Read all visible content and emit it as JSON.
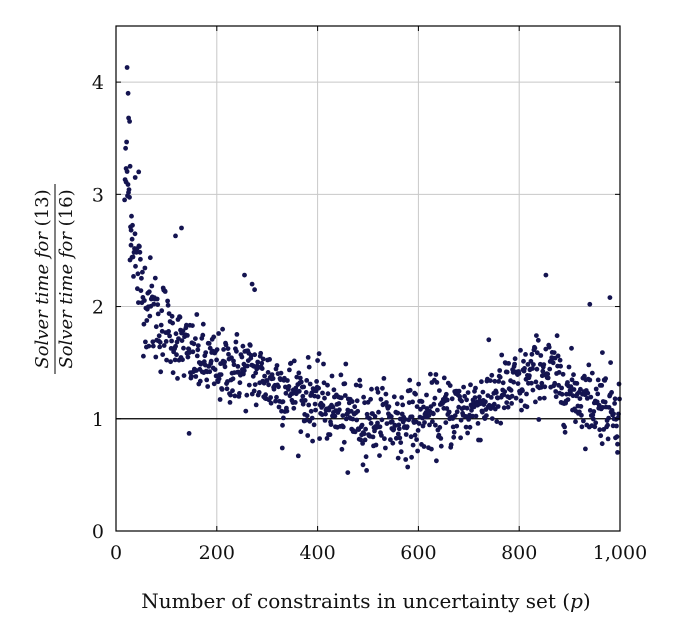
{
  "chart_data": {
    "type": "scatter",
    "xlabel": "Number of constraints in uncertainty set (p)",
    "ylabel_numerator": "Solver time for (13)",
    "ylabel_denominator": "Solver time for (16)",
    "xlim": [
      0,
      1000
    ],
    "ylim": [
      0,
      4.5
    ],
    "xticks": [
      0,
      200,
      400,
      600,
      800,
      1000
    ],
    "xtick_labels": [
      "0",
      "200",
      "400",
      "600",
      "800",
      "1,000"
    ],
    "yticks": [
      0,
      1,
      2,
      3,
      4
    ],
    "ytick_labels": [
      "0",
      "1",
      "2",
      "3",
      "4"
    ],
    "grid": true,
    "reference_line_y": 1,
    "marker_color": "#141450",
    "trend_points": [
      [
        20,
        3.2
      ],
      [
        40,
        2.35
      ],
      [
        60,
        2.05
      ],
      [
        80,
        1.9
      ],
      [
        100,
        1.8
      ],
      [
        120,
        1.7
      ],
      [
        150,
        1.55
      ],
      [
        200,
        1.45
      ],
      [
        250,
        1.45
      ],
      [
        300,
        1.35
      ],
      [
        350,
        1.25
      ],
      [
        400,
        1.15
      ],
      [
        450,
        1.05
      ],
      [
        500,
        1.0
      ],
      [
        550,
        0.98
      ],
      [
        600,
        1.0
      ],
      [
        650,
        1.05
      ],
      [
        700,
        1.1
      ],
      [
        750,
        1.2
      ],
      [
        800,
        1.3
      ],
      [
        850,
        1.45
      ],
      [
        900,
        1.25
      ],
      [
        950,
        1.15
      ],
      [
        1000,
        1.1
      ]
    ],
    "outliers": [
      [
        22,
        4.13
      ],
      [
        24,
        3.9
      ],
      [
        25,
        3.68
      ],
      [
        27,
        3.65
      ],
      [
        20,
        3.23
      ],
      [
        28,
        3.25
      ],
      [
        38,
        3.15
      ],
      [
        45,
        3.2
      ],
      [
        17,
        2.95
      ],
      [
        30,
        2.68
      ],
      [
        32,
        2.6
      ],
      [
        118,
        2.63
      ],
      [
        130,
        2.7
      ],
      [
        255,
        2.28
      ],
      [
        270,
        2.2
      ],
      [
        275,
        2.15
      ],
      [
        853,
        2.28
      ],
      [
        940,
        2.02
      ],
      [
        965,
        1.59
      ],
      [
        980,
        2.08
      ],
      [
        145,
        0.87
      ],
      [
        330,
        0.74
      ],
      [
        460,
        0.52
      ],
      [
        490,
        0.59
      ],
      [
        995,
        0.7
      ],
      [
        560,
        0.65
      ]
    ],
    "n_points": 1000
  }
}
